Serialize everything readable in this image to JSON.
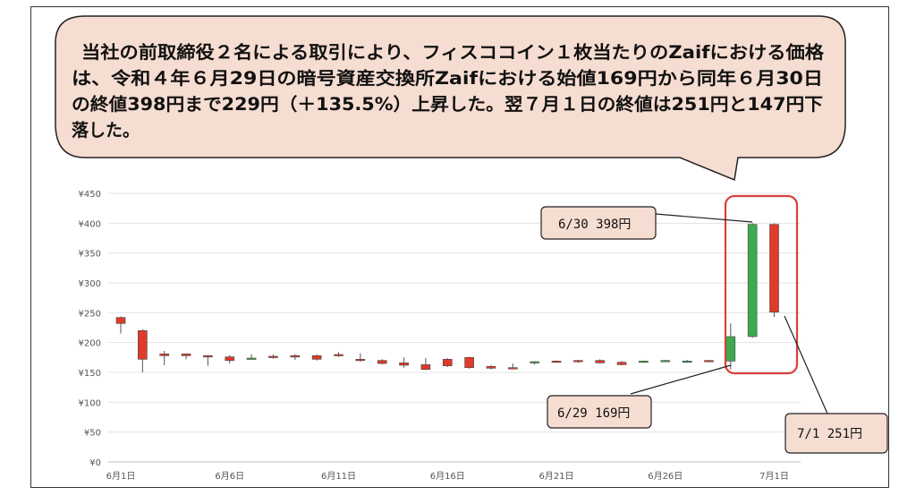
{
  "annotation_text": [
    "当社の前取締役２名による取引により、フィスココイン１枚当たりのZaifにおける価格",
    "は、令和４年６月29日の暗号資産交換所Zaifにおける始値169円から同年６月30日",
    "の終値398円まで229円（＋135.5%）上昇した。翌７月１日の終値は251円と147円下",
    "落した。"
  ],
  "callouts": {
    "jun30": "6/30  398円",
    "jun29": "6/29  169円",
    "jul1": "7/1  251円"
  },
  "colors": {
    "up": "#3cab4f",
    "down": "#e03a2b",
    "bubble_fill": "#f6ddd1",
    "highlight_box": "#d9413a"
  },
  "chart_data": {
    "type": "candlestick",
    "title": "",
    "xlabel": "",
    "ylabel": "",
    "ylim": [
      0,
      450
    ],
    "y_ticks": [
      "¥0",
      "¥50",
      "¥100",
      "¥150",
      "¥200",
      "¥250",
      "¥300",
      "¥350",
      "¥400",
      "¥450"
    ],
    "x_ticks": [
      "6月1日",
      "6月6日",
      "6月11日",
      "6月16日",
      "6月21日",
      "6月26日",
      "7月1日"
    ],
    "grid": true,
    "candles": [
      {
        "date": "6/1",
        "open": 242,
        "high": 244,
        "low": 215,
        "close": 232
      },
      {
        "date": "6/2",
        "open": 220,
        "high": 222,
        "low": 150,
        "close": 172
      },
      {
        "date": "6/3",
        "open": 181,
        "high": 186,
        "low": 162,
        "close": 178
      },
      {
        "date": "6/4",
        "open": 181,
        "high": 182,
        "low": 172,
        "close": 178
      },
      {
        "date": "6/5",
        "open": 178,
        "high": 179,
        "low": 161,
        "close": 177
      },
      {
        "date": "6/6",
        "open": 176,
        "high": 179,
        "low": 165,
        "close": 170
      },
      {
        "date": "6/7",
        "open": 174,
        "high": 180,
        "low": 172,
        "close": 174
      },
      {
        "date": "6/8",
        "open": 177,
        "high": 180,
        "low": 173,
        "close": 175
      },
      {
        "date": "6/9",
        "open": 178,
        "high": 181,
        "low": 171,
        "close": 177
      },
      {
        "date": "6/10",
        "open": 178,
        "high": 180,
        "low": 170,
        "close": 172
      },
      {
        "date": "6/11",
        "open": 180,
        "high": 184,
        "low": 176,
        "close": 179
      },
      {
        "date": "6/12",
        "open": 172,
        "high": 182,
        "low": 168,
        "close": 170
      },
      {
        "date": "6/13",
        "open": 170,
        "high": 172,
        "low": 163,
        "close": 165
      },
      {
        "date": "6/14",
        "open": 166,
        "high": 175,
        "low": 158,
        "close": 162
      },
      {
        "date": "6/15",
        "open": 163,
        "high": 174,
        "low": 154,
        "close": 155
      },
      {
        "date": "6/16",
        "open": 172,
        "high": 174,
        "low": 159,
        "close": 161
      },
      {
        "date": "6/17",
        "open": 175,
        "high": 176,
        "low": 156,
        "close": 158
      },
      {
        "date": "6/18",
        "open": 160,
        "high": 162,
        "low": 155,
        "close": 157
      },
      {
        "date": "6/19",
        "open": 158,
        "high": 165,
        "low": 156,
        "close": 157
      },
      {
        "date": "6/20",
        "open": 166,
        "high": 169,
        "low": 163,
        "close": 168
      },
      {
        "date": "6/21",
        "open": 169,
        "high": 170,
        "low": 167,
        "close": 168
      },
      {
        "date": "6/22",
        "open": 170,
        "high": 171,
        "low": 166,
        "close": 168
      },
      {
        "date": "6/23",
        "open": 170,
        "high": 172,
        "low": 165,
        "close": 166
      },
      {
        "date": "6/24",
        "open": 167,
        "high": 169,
        "low": 162,
        "close": 163
      },
      {
        "date": "6/25",
        "open": 168,
        "high": 170,
        "low": 166,
        "close": 169
      },
      {
        "date": "6/26",
        "open": 170,
        "high": 171,
        "low": 168,
        "close": 170
      },
      {
        "date": "6/27",
        "open": 169,
        "high": 171,
        "low": 168,
        "close": 169
      },
      {
        "date": "6/28",
        "open": 170,
        "high": 171,
        "low": 168,
        "close": 169
      },
      {
        "date": "6/29",
        "open": 169,
        "high": 232,
        "low": 155,
        "close": 210
      },
      {
        "date": "6/30",
        "open": 210,
        "high": 400,
        "low": 208,
        "close": 398
      },
      {
        "date": "7/1",
        "open": 398,
        "high": 400,
        "low": 243,
        "close": 251
      }
    ]
  }
}
